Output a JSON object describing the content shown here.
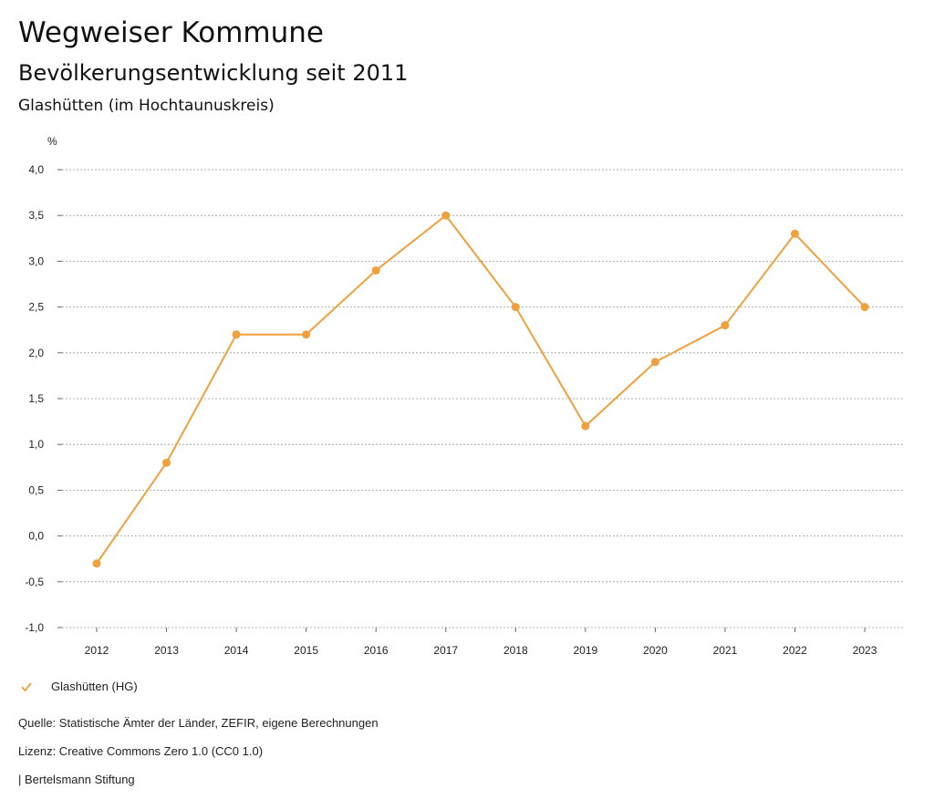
{
  "header": {
    "title": "Wegweiser Kommune",
    "subtitle": "Bevölkerungsentwicklung seit 2011",
    "region": "Glashütten (im Hochtaunuskreis)"
  },
  "chart_data": {
    "type": "line",
    "ylabel": "%",
    "ylim": [
      -1.0,
      4.0
    ],
    "yticks": [
      "4,0",
      "3,5",
      "3,0",
      "2,5",
      "2,0",
      "1,5",
      "1,0",
      "0,5",
      "0,0",
      "-0,5",
      "-1,0"
    ],
    "categories": [
      "2012",
      "2013",
      "2014",
      "2015",
      "2016",
      "2017",
      "2018",
      "2019",
      "2020",
      "2021",
      "2022",
      "2023"
    ],
    "series": [
      {
        "name": "Glashütten (HG)",
        "color": "#f0a03c",
        "values": [
          -0.3,
          0.8,
          2.2,
          2.2,
          2.9,
          3.5,
          2.5,
          1.2,
          1.9,
          2.3,
          3.3,
          2.5
        ]
      }
    ],
    "grid": true,
    "legend_position": "bottom-left"
  },
  "footer": {
    "source": "Quelle: Statistische Ämter der Länder, ZEFIR, eigene Berechnungen",
    "license": "Lizenz: Creative Commons Zero 1.0 (CC0 1.0)",
    "publisher": "| Bertelsmann Stiftung"
  }
}
